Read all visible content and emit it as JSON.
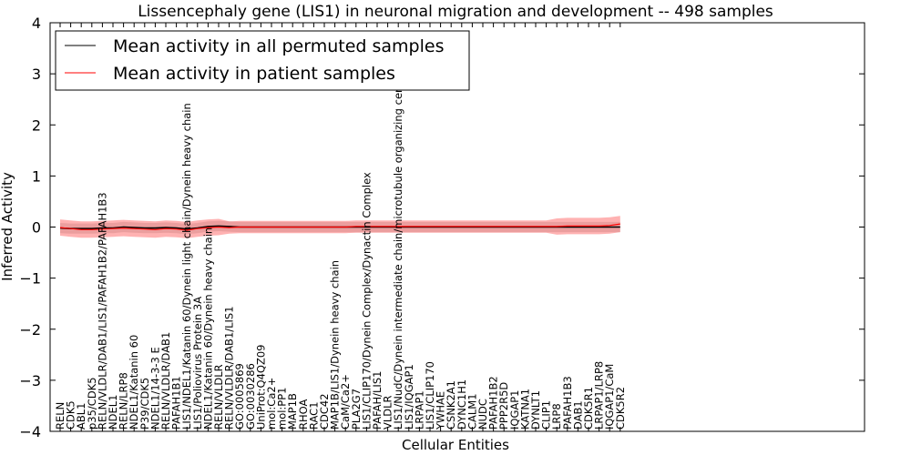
{
  "chart_data": {
    "type": "line",
    "title": "Lissencephaly gene (LIS1) in neuronal migration and development -- 498 samples",
    "xlabel": "Cellular Entities",
    "ylabel": "Inferred Activity",
    "ylim": [
      -4,
      4
    ],
    "yticks": [
      "4",
      "3",
      "2",
      "1",
      "0",
      "−1",
      "−2",
      "−3",
      "−4"
    ],
    "legend_position": "upper-left",
    "categories": [
      "RELN",
      "CDK5",
      "ABL1",
      "p35/CDK5",
      "RELN/VLDLR/DAB1/LIS1/PAFAH1B2/PAFAH1B3",
      "NDEL1",
      "RELN/LRP8",
      "NDEL1/Katanin 60",
      "P39/CDK5",
      "NDEL1/14-3-3 E",
      "RELN/VLDLR/DAB1",
      "PAFAH1B1",
      "LIS1/NDEL1/Katanin 60/Dynein light chain/Dynein heavy chain",
      "LIS1/Poliovirus Protein 3A",
      "NDEL1/Katanin 60/Dynein heavy chain",
      "RELN/VLDLR",
      "RELN/VLDLR/DAB1/LIS1",
      "GO:0005869",
      "GO:0030286",
      "UniProt:Q4QZ09",
      "mol:Ca2+",
      "mol:PP1",
      "MAP1B",
      "RHOA",
      "RAC1",
      "CDC42",
      "MAP1B/LIS1/Dynein heavy chain",
      "CaM/Ca2+",
      "PLA2G7",
      "LIS1/CLIP170/Dynein Complex/Dynactin Complex",
      "PAFAH/LIS1",
      "VLDLR",
      "LIS1/NudC/Dynein intermediate chain/microtubule organizing center",
      "LIS1/IQGAP1",
      "LRPAP1",
      "LIS1/CLIP170",
      "YWHAE",
      "CSNK2A1",
      "DYNC1H1",
      "CALM1",
      "NUDC",
      "PAFAH1B2",
      "PPP2R5D",
      "IQGAP1",
      "KATNA1",
      "DYNLT1",
      "CLIP1",
      "LRP8",
      "PAFAH1B3",
      "DAB1",
      "CDK5R1",
      "LRPAP1/LRP8",
      "IQGAP1/CaM",
      "CDK5R2"
    ],
    "series": [
      {
        "name": "Mean activity in all permuted samples",
        "color": "#000000",
        "values": [
          -0.02,
          -0.03,
          -0.03,
          -0.03,
          -0.02,
          -0.02,
          0.0,
          -0.01,
          -0.02,
          -0.02,
          -0.01,
          -0.02,
          -0.04,
          -0.02,
          0.01,
          0.02,
          0.01,
          0.0,
          0.0,
          0.0,
          0.0,
          0.0,
          0.0,
          0.0,
          0.0,
          0.0,
          0.0,
          0.0,
          0.0,
          0.0,
          0.0,
          0.0,
          0.0,
          0.0,
          0.0,
          0.0,
          0.0,
          0.0,
          0.0,
          0.0,
          0.0,
          0.0,
          0.0,
          0.0,
          0.0,
          0.0,
          0.0,
          0.0,
          0.0,
          0.0,
          0.0,
          0.0,
          0.0,
          0.0
        ],
        "band": 0.1
      },
      {
        "name": "Mean activity in patient samples",
        "color": "#ff0000",
        "values": [
          -0.01,
          -0.03,
          -0.05,
          -0.05,
          -0.04,
          -0.03,
          -0.02,
          -0.03,
          -0.04,
          -0.05,
          -0.03,
          -0.04,
          -0.06,
          -0.03,
          -0.01,
          0.0,
          -0.01,
          0.0,
          0.0,
          0.0,
          0.0,
          0.0,
          0.0,
          0.0,
          0.0,
          0.0,
          0.0,
          0.0,
          0.01,
          0.01,
          0.01,
          0.01,
          0.01,
          0.01,
          0.01,
          0.01,
          0.01,
          0.01,
          0.01,
          0.01,
          0.01,
          0.01,
          0.01,
          0.01,
          0.01,
          0.01,
          0.01,
          0.01,
          0.02,
          0.02,
          0.02,
          0.02,
          0.03,
          0.06
        ],
        "band": 0.12
      }
    ]
  }
}
